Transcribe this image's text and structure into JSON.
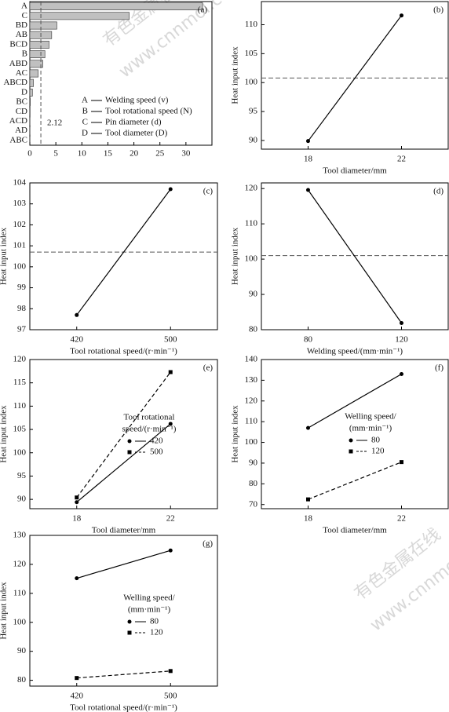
{
  "chart_data": [
    {
      "type": "bar",
      "orientation": "horizontal",
      "panel": "(a)",
      "categories": [
        "A",
        "C",
        "BD",
        "AB",
        "BCD",
        "B",
        "ABD",
        "AC",
        "ABCD",
        "D",
        "BC",
        "CD",
        "ACD",
        "AD",
        "ABC"
      ],
      "values": [
        33.2,
        19.1,
        5.2,
        4.2,
        3.7,
        2.9,
        2.5,
        1.6,
        0.7,
        0.5,
        0.1,
        0.05,
        0.03,
        0.02,
        0.01
      ],
      "color": "#c0c0c0",
      "xlim": [
        0,
        35
      ],
      "xticks": [
        0,
        5,
        10,
        15,
        20,
        25,
        30
      ],
      "threshold": 2.12,
      "legend_items": [
        {
          "key": "A",
          "text": "Welding speed (v)"
        },
        {
          "key": "B",
          "text": "Tool rotational speed (N)"
        },
        {
          "key": "C",
          "text": "Pin diameter (d)"
        },
        {
          "key": "D",
          "text": "Tool diameter (D)"
        }
      ]
    },
    {
      "type": "line",
      "panel": "(b)",
      "x": [
        18,
        22
      ],
      "xlim": [
        16,
        24
      ],
      "xticks": [
        18,
        22
      ],
      "ylim": [
        88.5,
        114
      ],
      "yticks": [
        90,
        95,
        100,
        105,
        110
      ],
      "xlabel": "Tool diameter/mm",
      "ylabel": "Heat input index",
      "mean_line": 100.8,
      "series": [
        {
          "color": "#000000",
          "line_style": "solid",
          "marker": "circle",
          "values": [
            89.9,
            111.6
          ]
        }
      ]
    },
    {
      "type": "line",
      "panel": "(c)",
      "x": [
        420,
        500
      ],
      "xlim": [
        380,
        540
      ],
      "xticks": [
        420,
        500
      ],
      "ylim": [
        97,
        104
      ],
      "yticks": [
        97,
        98,
        99,
        100,
        101,
        102,
        103,
        104
      ],
      "xlabel": "Tool rotational speed/(r·min⁻¹)",
      "ylabel": "Heat input index",
      "mean_line": 100.7,
      "series": [
        {
          "color": "#000000",
          "line_style": "solid",
          "marker": "circle",
          "values": [
            97.7,
            103.7
          ]
        }
      ]
    },
    {
      "type": "line",
      "panel": "(d)",
      "x": [
        80,
        120
      ],
      "xlim": [
        60,
        140
      ],
      "xticks": [
        80,
        120
      ],
      "ylim": [
        80,
        121.6
      ],
      "yticks": [
        80,
        90,
        100,
        110,
        120
      ],
      "xlabel": "Welding speed/(mm·min⁻¹)",
      "ylabel": "Heat input index",
      "mean_line": 101,
      "series": [
        {
          "color": "#000000",
          "line_style": "solid",
          "marker": "circle",
          "values": [
            119.6,
            81.9
          ]
        }
      ]
    },
    {
      "type": "line",
      "panel": "(e)",
      "x": [
        18,
        22
      ],
      "xlim": [
        16,
        24
      ],
      "xticks": [
        18,
        22
      ],
      "ylim": [
        88,
        120
      ],
      "yticks": [
        90,
        95,
        100,
        105,
        110,
        115,
        120
      ],
      "xlabel": "Tool diameter/mm",
      "ylabel": "Heat input index",
      "legend_title": [
        "Tool rotational",
        "speed/(r·min⁻¹)"
      ],
      "series": [
        {
          "name": "420",
          "color": "#000000",
          "line_style": "solid",
          "marker": "circle",
          "values": [
            89.4,
            106.2
          ]
        },
        {
          "name": "500",
          "color": "#000000",
          "line_style": "dashed",
          "marker": "square",
          "values": [
            90.4,
            117.3
          ]
        }
      ]
    },
    {
      "type": "line",
      "panel": "(f)",
      "x": [
        18,
        22
      ],
      "xlim": [
        16,
        24
      ],
      "xticks": [
        18,
        22
      ],
      "ylim": [
        68,
        140
      ],
      "yticks": [
        70,
        80,
        90,
        100,
        110,
        120,
        130,
        140
      ],
      "xlabel": "Tool diameter/mm",
      "ylabel": "Heat input index",
      "legend_title": [
        "Welling speed/",
        "(mm·min⁻¹)"
      ],
      "series": [
        {
          "name": "80",
          "color": "#000000",
          "line_style": "solid",
          "marker": "circle",
          "values": [
            107,
            133
          ]
        },
        {
          "name": "120",
          "color": "#000000",
          "line_style": "dashed",
          "marker": "square",
          "values": [
            72.5,
            90.5
          ]
        }
      ]
    },
    {
      "type": "line",
      "panel": "(g)",
      "x": [
        420,
        500
      ],
      "xlim": [
        380,
        540
      ],
      "xticks": [
        420,
        500
      ],
      "ylim": [
        78,
        130
      ],
      "yticks": [
        80,
        90,
        100,
        110,
        120,
        130
      ],
      "xlabel": "Tool rotational speed/(r·min⁻¹)",
      "ylabel": "Heat input index",
      "legend_title": [
        "Welling speed/",
        "(mm·min⁻¹)"
      ],
      "series": [
        {
          "name": "80",
          "color": "#000000",
          "line_style": "solid",
          "marker": "circle",
          "values": [
            115.2,
            124.8
          ]
        },
        {
          "name": "120",
          "color": "#000000",
          "line_style": "dashed",
          "marker": "square",
          "values": [
            80.8,
            83.2
          ]
        }
      ]
    }
  ],
  "watermark": [
    "有色金属在线",
    "www.cnnmol.com"
  ]
}
